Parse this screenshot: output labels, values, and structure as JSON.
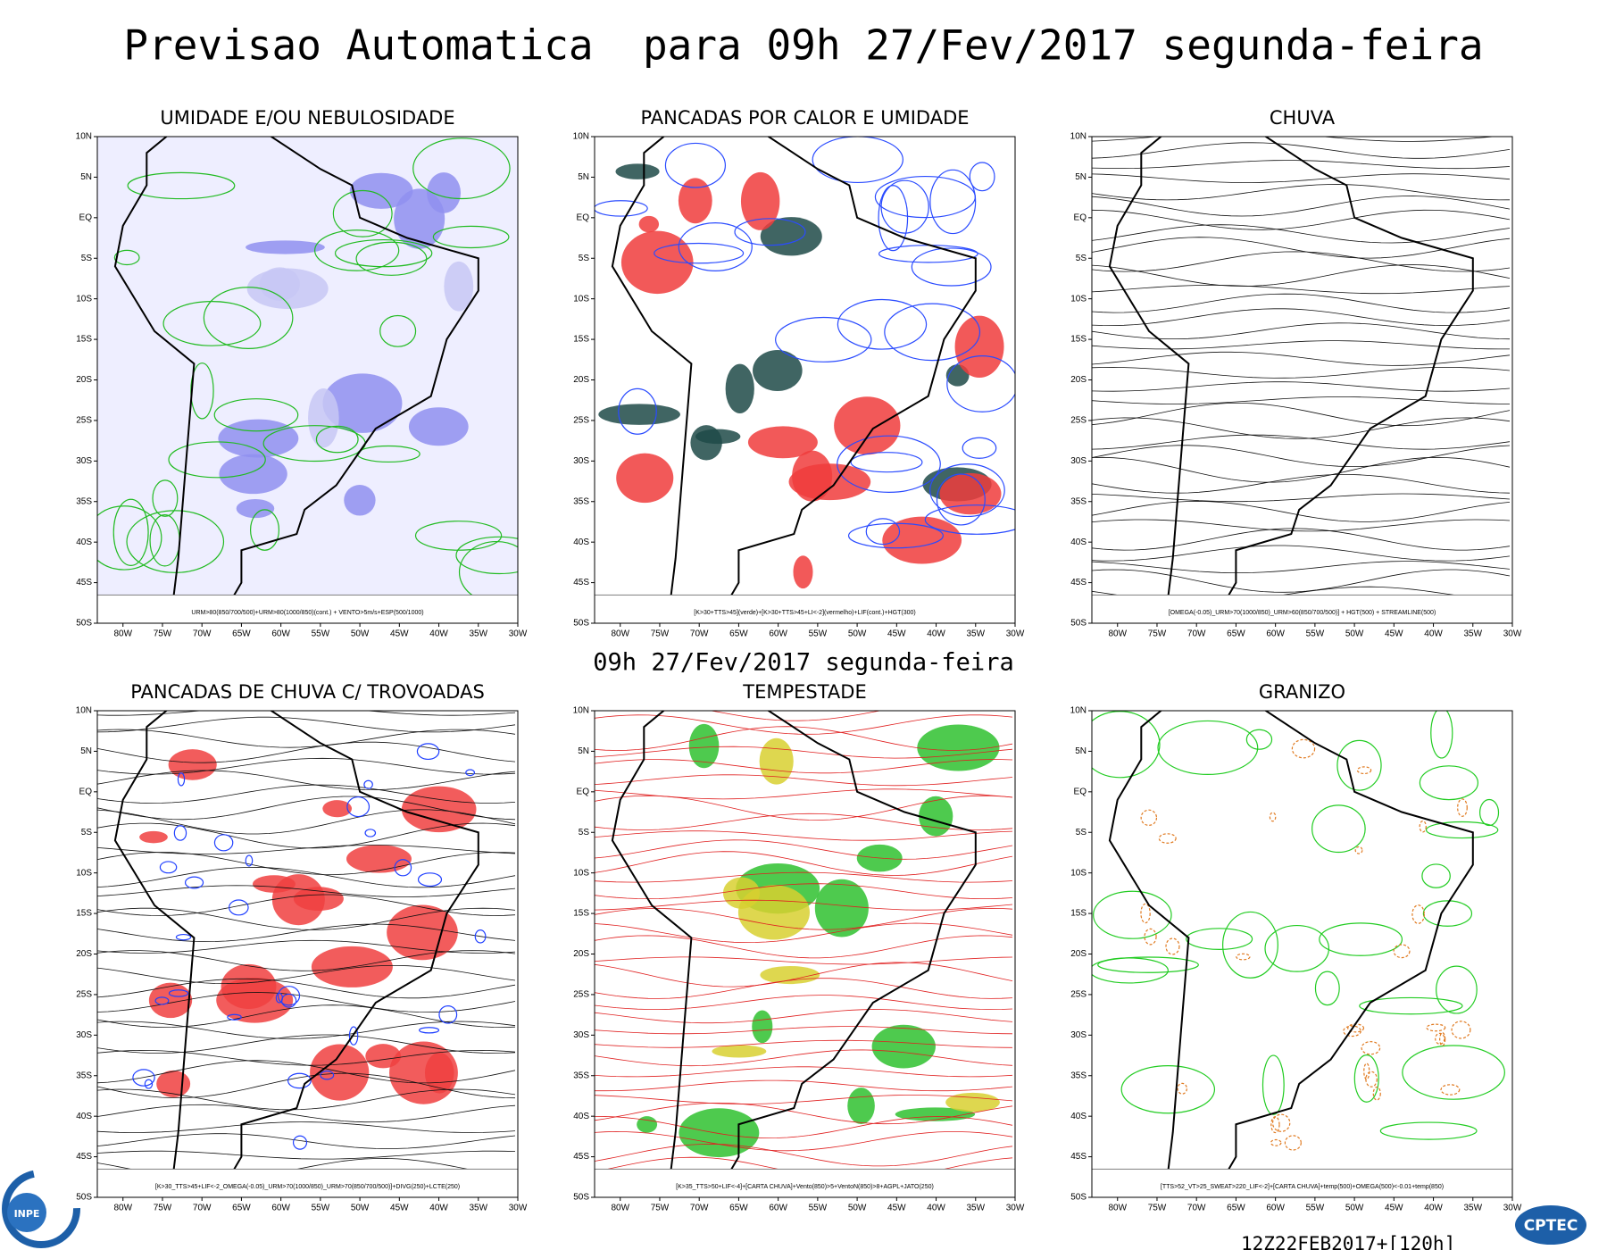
{
  "header": {
    "title": "Previsao Automatica  para 09h 27/Fev/2017 segunda-feira",
    "subtitle": "09h 27/Fev/2017 segunda-feira"
  },
  "axes": {
    "x_labels": [
      "80W",
      "75W",
      "70W",
      "65W",
      "60W",
      "55W",
      "50W",
      "45W",
      "40W",
      "35W",
      "30W"
    ],
    "y_labels": [
      "10N",
      "5N",
      "EQ",
      "5S",
      "10S",
      "15S",
      "20S",
      "25S",
      "30S",
      "35S",
      "40S",
      "45S",
      "50S"
    ]
  },
  "panels": [
    {
      "title": "UMIDADE E/OU NEBULOSIDADE",
      "caption": "URM>80(850/700/500)+URM>80(1000/850)(cont.) + VENTO>5m/s+ESP(500/1000)"
    },
    {
      "title": "PANCADAS POR CALOR E UMIDADE",
      "caption": "[K>30+TTS>45](verde)+[K>30+TTS>45+LI<-2](vermelho)+LIF(cont.)+HGT(300)"
    },
    {
      "title": "CHUVA",
      "caption": "[OMEGA(-0.05)_URM>70(1000/850)_URM>60(850/700/500)] + HGT(500) + STREAMLINE(500)"
    },
    {
      "title": "PANCADAS DE CHUVA C/ TROVOADAS",
      "caption": "[K>30_TTS>45+LIF<-2_OMEGA(-0.05)_URM>70(1000/850)_URM>70(850/700/500)]+DIVG(250)+LCTE(250)"
    },
    {
      "title": "TEMPESTADE",
      "caption": "[K>35_TTS>50+LIF<-4]+[CARTA CHUVA]+Vento(850)>5+VentoN(850)>8+AGPL+JATO(250)"
    },
    {
      "title": "GRANIZO",
      "caption": "[TTS>52_VT>25_SWEAT>220_LIF<-2]+[CARTA CHUVA]+temp(500)+OMEGA(500)<-0.01+temp(850)"
    }
  ],
  "footer": {
    "run": "12Z22FEB2017+[120h]",
    "logo_left": "INPE",
    "logo_right": "CPTEC"
  }
}
